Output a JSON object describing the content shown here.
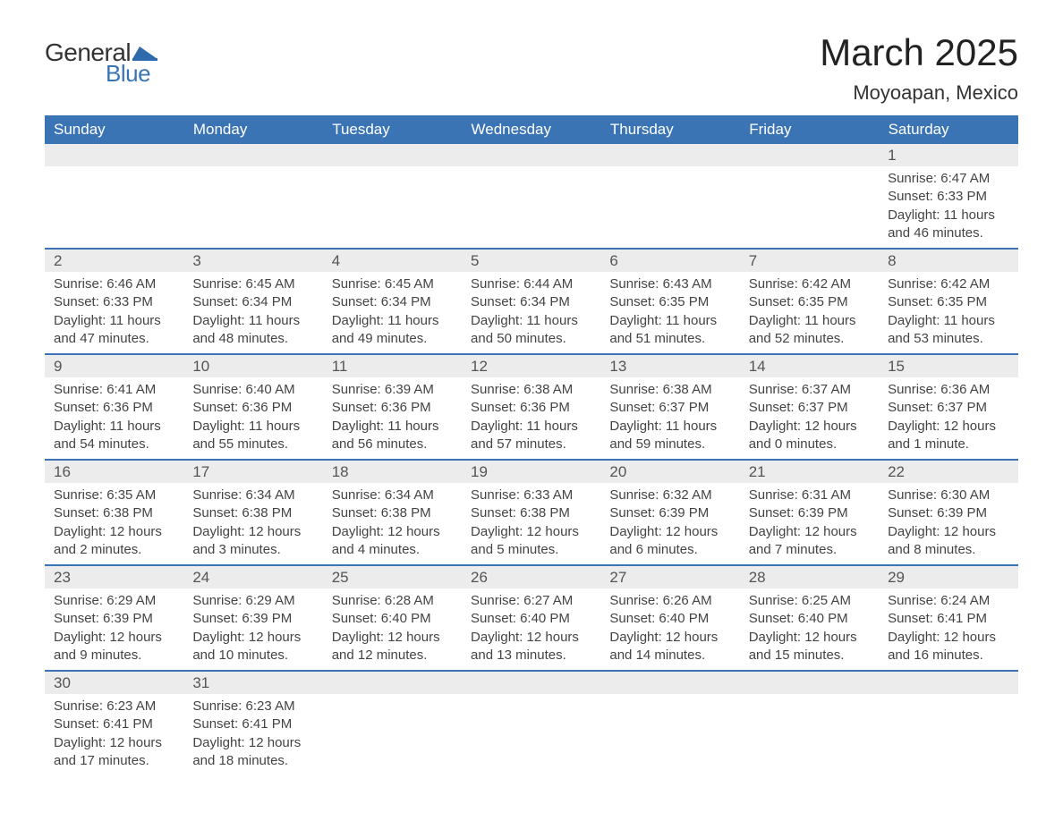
{
  "logo": {
    "text1": "General",
    "text2": "Blue",
    "flag_color": "#2e6bad"
  },
  "title": "March 2025",
  "location": "Moyoapan, Mexico",
  "colors": {
    "header_bg": "#3a74b4",
    "header_text": "#ffffff",
    "daynum_bg": "#ececec",
    "border": "#3a74b4",
    "text": "#444444"
  },
  "day_headers": [
    "Sunday",
    "Monday",
    "Tuesday",
    "Wednesday",
    "Thursday",
    "Friday",
    "Saturday"
  ],
  "weeks": [
    [
      null,
      null,
      null,
      null,
      null,
      null,
      {
        "n": "1",
        "sr": "Sunrise: 6:47 AM",
        "ss": "Sunset: 6:33 PM",
        "dl1": "Daylight: 11 hours",
        "dl2": "and 46 minutes."
      }
    ],
    [
      {
        "n": "2",
        "sr": "Sunrise: 6:46 AM",
        "ss": "Sunset: 6:33 PM",
        "dl1": "Daylight: 11 hours",
        "dl2": "and 47 minutes."
      },
      {
        "n": "3",
        "sr": "Sunrise: 6:45 AM",
        "ss": "Sunset: 6:34 PM",
        "dl1": "Daylight: 11 hours",
        "dl2": "and 48 minutes."
      },
      {
        "n": "4",
        "sr": "Sunrise: 6:45 AM",
        "ss": "Sunset: 6:34 PM",
        "dl1": "Daylight: 11 hours",
        "dl2": "and 49 minutes."
      },
      {
        "n": "5",
        "sr": "Sunrise: 6:44 AM",
        "ss": "Sunset: 6:34 PM",
        "dl1": "Daylight: 11 hours",
        "dl2": "and 50 minutes."
      },
      {
        "n": "6",
        "sr": "Sunrise: 6:43 AM",
        "ss": "Sunset: 6:35 PM",
        "dl1": "Daylight: 11 hours",
        "dl2": "and 51 minutes."
      },
      {
        "n": "7",
        "sr": "Sunrise: 6:42 AM",
        "ss": "Sunset: 6:35 PM",
        "dl1": "Daylight: 11 hours",
        "dl2": "and 52 minutes."
      },
      {
        "n": "8",
        "sr": "Sunrise: 6:42 AM",
        "ss": "Sunset: 6:35 PM",
        "dl1": "Daylight: 11 hours",
        "dl2": "and 53 minutes."
      }
    ],
    [
      {
        "n": "9",
        "sr": "Sunrise: 6:41 AM",
        "ss": "Sunset: 6:36 PM",
        "dl1": "Daylight: 11 hours",
        "dl2": "and 54 minutes."
      },
      {
        "n": "10",
        "sr": "Sunrise: 6:40 AM",
        "ss": "Sunset: 6:36 PM",
        "dl1": "Daylight: 11 hours",
        "dl2": "and 55 minutes."
      },
      {
        "n": "11",
        "sr": "Sunrise: 6:39 AM",
        "ss": "Sunset: 6:36 PM",
        "dl1": "Daylight: 11 hours",
        "dl2": "and 56 minutes."
      },
      {
        "n": "12",
        "sr": "Sunrise: 6:38 AM",
        "ss": "Sunset: 6:36 PM",
        "dl1": "Daylight: 11 hours",
        "dl2": "and 57 minutes."
      },
      {
        "n": "13",
        "sr": "Sunrise: 6:38 AM",
        "ss": "Sunset: 6:37 PM",
        "dl1": "Daylight: 11 hours",
        "dl2": "and 59 minutes."
      },
      {
        "n": "14",
        "sr": "Sunrise: 6:37 AM",
        "ss": "Sunset: 6:37 PM",
        "dl1": "Daylight: 12 hours",
        "dl2": "and 0 minutes."
      },
      {
        "n": "15",
        "sr": "Sunrise: 6:36 AM",
        "ss": "Sunset: 6:37 PM",
        "dl1": "Daylight: 12 hours",
        "dl2": "and 1 minute."
      }
    ],
    [
      {
        "n": "16",
        "sr": "Sunrise: 6:35 AM",
        "ss": "Sunset: 6:38 PM",
        "dl1": "Daylight: 12 hours",
        "dl2": "and 2 minutes."
      },
      {
        "n": "17",
        "sr": "Sunrise: 6:34 AM",
        "ss": "Sunset: 6:38 PM",
        "dl1": "Daylight: 12 hours",
        "dl2": "and 3 minutes."
      },
      {
        "n": "18",
        "sr": "Sunrise: 6:34 AM",
        "ss": "Sunset: 6:38 PM",
        "dl1": "Daylight: 12 hours",
        "dl2": "and 4 minutes."
      },
      {
        "n": "19",
        "sr": "Sunrise: 6:33 AM",
        "ss": "Sunset: 6:38 PM",
        "dl1": "Daylight: 12 hours",
        "dl2": "and 5 minutes."
      },
      {
        "n": "20",
        "sr": "Sunrise: 6:32 AM",
        "ss": "Sunset: 6:39 PM",
        "dl1": "Daylight: 12 hours",
        "dl2": "and 6 minutes."
      },
      {
        "n": "21",
        "sr": "Sunrise: 6:31 AM",
        "ss": "Sunset: 6:39 PM",
        "dl1": "Daylight: 12 hours",
        "dl2": "and 7 minutes."
      },
      {
        "n": "22",
        "sr": "Sunrise: 6:30 AM",
        "ss": "Sunset: 6:39 PM",
        "dl1": "Daylight: 12 hours",
        "dl2": "and 8 minutes."
      }
    ],
    [
      {
        "n": "23",
        "sr": "Sunrise: 6:29 AM",
        "ss": "Sunset: 6:39 PM",
        "dl1": "Daylight: 12 hours",
        "dl2": "and 9 minutes."
      },
      {
        "n": "24",
        "sr": "Sunrise: 6:29 AM",
        "ss": "Sunset: 6:39 PM",
        "dl1": "Daylight: 12 hours",
        "dl2": "and 10 minutes."
      },
      {
        "n": "25",
        "sr": "Sunrise: 6:28 AM",
        "ss": "Sunset: 6:40 PM",
        "dl1": "Daylight: 12 hours",
        "dl2": "and 12 minutes."
      },
      {
        "n": "26",
        "sr": "Sunrise: 6:27 AM",
        "ss": "Sunset: 6:40 PM",
        "dl1": "Daylight: 12 hours",
        "dl2": "and 13 minutes."
      },
      {
        "n": "27",
        "sr": "Sunrise: 6:26 AM",
        "ss": "Sunset: 6:40 PM",
        "dl1": "Daylight: 12 hours",
        "dl2": "and 14 minutes."
      },
      {
        "n": "28",
        "sr": "Sunrise: 6:25 AM",
        "ss": "Sunset: 6:40 PM",
        "dl1": "Daylight: 12 hours",
        "dl2": "and 15 minutes."
      },
      {
        "n": "29",
        "sr": "Sunrise: 6:24 AM",
        "ss": "Sunset: 6:41 PM",
        "dl1": "Daylight: 12 hours",
        "dl2": "and 16 minutes."
      }
    ],
    [
      {
        "n": "30",
        "sr": "Sunrise: 6:23 AM",
        "ss": "Sunset: 6:41 PM",
        "dl1": "Daylight: 12 hours",
        "dl2": "and 17 minutes."
      },
      {
        "n": "31",
        "sr": "Sunrise: 6:23 AM",
        "ss": "Sunset: 6:41 PM",
        "dl1": "Daylight: 12 hours",
        "dl2": "and 18 minutes."
      },
      null,
      null,
      null,
      null,
      null
    ]
  ]
}
